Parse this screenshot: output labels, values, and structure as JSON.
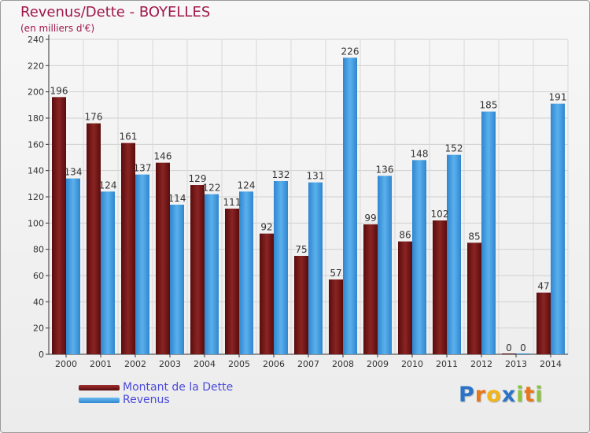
{
  "header": {
    "title": "Revenus/Dette - BOYELLES",
    "subtitle": "(en milliers d'€)"
  },
  "legend": {
    "items": [
      {
        "label": "Montant de la Dette",
        "color": "#7a1a1a"
      },
      {
        "label": "Revenus",
        "color": "#3d9be0"
      }
    ]
  },
  "logo": {
    "letters": [
      "P",
      "r",
      "o",
      "x",
      "i",
      "t",
      "i"
    ],
    "colors": [
      "#2a73c7",
      "#e8761a",
      "#f1b51c",
      "#2a73c7",
      "#8bc43f",
      "#e8761a",
      "#8bc43f"
    ]
  },
  "colors": {
    "dette": "#7a1a1a",
    "revenus": "#3d9be0",
    "title": "#a0174a"
  },
  "chart_data": {
    "type": "bar",
    "title": "Revenus/Dette - BOYELLES",
    "subtitle": "(en milliers d'€)",
    "categories": [
      "2000",
      "2001",
      "2002",
      "2003",
      "2004",
      "2005",
      "2006",
      "2007",
      "2008",
      "2009",
      "2010",
      "2011",
      "2012",
      "2013",
      "2014"
    ],
    "series": [
      {
        "name": "Montant de la Dette",
        "values": [
          196,
          176,
          161,
          146,
          129,
          111,
          92,
          75,
          57,
          99,
          86,
          102,
          85,
          0,
          47
        ]
      },
      {
        "name": "Revenus",
        "values": [
          134,
          124,
          137,
          114,
          122,
          124,
          132,
          131,
          226,
          136,
          148,
          152,
          185,
          0,
          191
        ]
      }
    ],
    "ylim": [
      0,
      240
    ],
    "yticks": [
      0,
      20,
      40,
      60,
      80,
      100,
      120,
      140,
      160,
      180,
      200,
      220,
      240
    ],
    "grid": true,
    "legend_position": "bottom-left"
  }
}
